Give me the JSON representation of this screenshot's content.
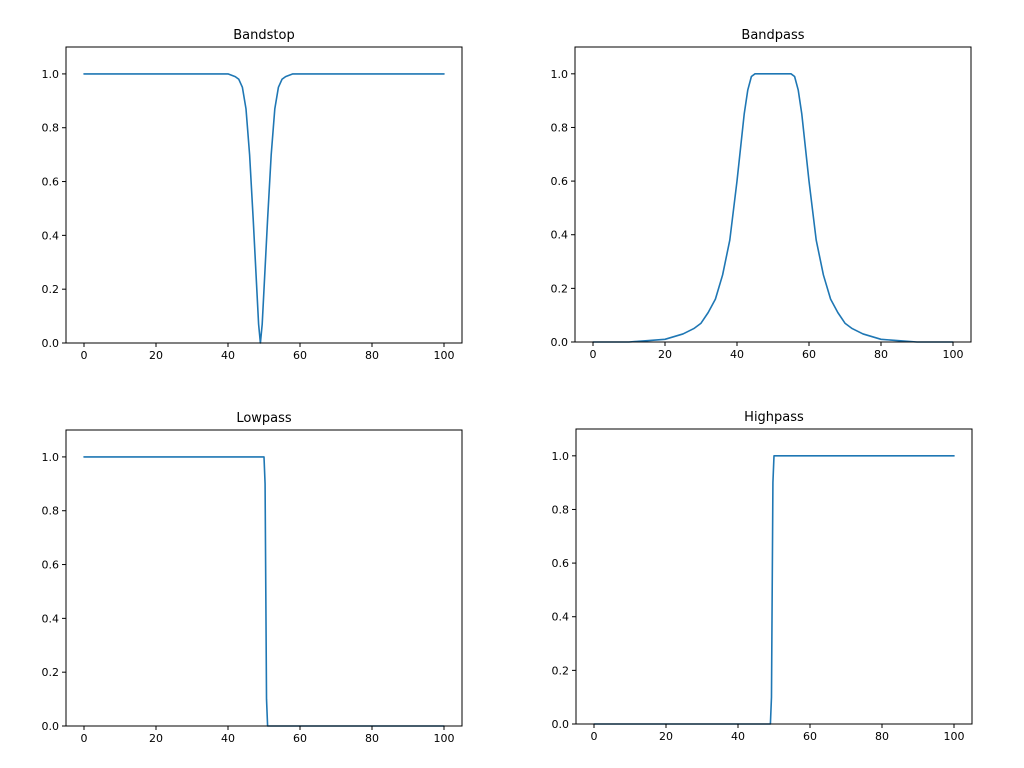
{
  "chart_data": [
    {
      "type": "line",
      "title": "Bandstop",
      "xlim": [
        -5,
        105
      ],
      "ylim": [
        0,
        1.1
      ],
      "xticks": [
        0,
        20,
        40,
        60,
        80,
        100
      ],
      "xtick_labels": [
        "0",
        "20",
        "40",
        "60",
        "80",
        "100"
      ],
      "yticks": [
        0.0,
        0.2,
        0.4,
        0.6,
        0.8,
        1.0
      ],
      "ytick_labels": [
        "0.0",
        "0.2",
        "0.4",
        "0.6",
        "0.8",
        "1.0"
      ],
      "grid": false,
      "series": [
        {
          "color": "#1f77b4",
          "x": [
            0,
            10,
            20,
            30,
            36,
            40,
            42,
            43,
            44,
            45,
            46,
            47,
            48,
            48.5,
            49,
            49.5,
            50,
            51,
            52,
            53,
            54,
            55,
            56,
            58,
            62,
            70,
            80,
            90,
            100
          ],
          "y": [
            1.0,
            1.0,
            1.0,
            1.0,
            1.0,
            1.0,
            0.99,
            0.98,
            0.95,
            0.87,
            0.7,
            0.46,
            0.2,
            0.07,
            0.0,
            0.07,
            0.2,
            0.46,
            0.7,
            0.87,
            0.95,
            0.98,
            0.99,
            1.0,
            1.0,
            1.0,
            1.0,
            1.0,
            1.0
          ]
        }
      ]
    },
    {
      "type": "line",
      "title": "Bandpass",
      "xlim": [
        -5,
        105
      ],
      "ylim": [
        0,
        1.1
      ],
      "xticks": [
        0,
        20,
        40,
        60,
        80,
        100
      ],
      "xtick_labels": [
        "0",
        "20",
        "40",
        "60",
        "80",
        "100"
      ],
      "yticks": [
        0.0,
        0.2,
        0.4,
        0.6,
        0.8,
        1.0
      ],
      "ytick_labels": [
        "0.0",
        "0.2",
        "0.4",
        "0.6",
        "0.8",
        "1.0"
      ],
      "grid": false,
      "series": [
        {
          "color": "#1f77b4",
          "x": [
            0,
            10,
            15,
            20,
            25,
            28,
            30,
            32,
            34,
            36,
            38,
            40,
            42,
            43,
            44,
            45,
            47,
            50,
            53,
            55,
            56,
            57,
            58,
            60,
            62,
            64,
            66,
            68,
            70,
            72,
            75,
            80,
            85,
            90,
            100
          ],
          "y": [
            0.0,
            0.0,
            0.005,
            0.01,
            0.03,
            0.05,
            0.07,
            0.11,
            0.16,
            0.25,
            0.38,
            0.6,
            0.85,
            0.94,
            0.99,
            1.0,
            1.0,
            1.0,
            1.0,
            1.0,
            0.99,
            0.94,
            0.85,
            0.6,
            0.38,
            0.25,
            0.16,
            0.11,
            0.07,
            0.05,
            0.03,
            0.01,
            0.005,
            0.0,
            0.0
          ]
        }
      ]
    },
    {
      "type": "line",
      "title": "Lowpass",
      "xlim": [
        -5,
        105
      ],
      "ylim": [
        0,
        1.1
      ],
      "xticks": [
        0,
        20,
        40,
        60,
        80,
        100
      ],
      "xtick_labels": [
        "0",
        "20",
        "40",
        "60",
        "80",
        "100"
      ],
      "yticks": [
        0.0,
        0.2,
        0.4,
        0.6,
        0.8,
        1.0
      ],
      "ytick_labels": [
        "0.0",
        "0.2",
        "0.4",
        "0.6",
        "0.8",
        "1.0"
      ],
      "grid": false,
      "series": [
        {
          "color": "#1f77b4",
          "x": [
            0,
            10,
            20,
            30,
            40,
            48,
            50,
            50.3,
            50.5,
            50.7,
            51,
            52,
            60,
            70,
            80,
            90,
            100
          ],
          "y": [
            1.0,
            1.0,
            1.0,
            1.0,
            1.0,
            1.0,
            1.0,
            0.9,
            0.5,
            0.1,
            0.0,
            0.0,
            0.0,
            0.0,
            0.0,
            0.0,
            0.0
          ]
        }
      ]
    },
    {
      "type": "line",
      "title": "Highpass",
      "xlim": [
        -5,
        105
      ],
      "ylim": [
        0,
        1.1
      ],
      "xticks": [
        0,
        20,
        40,
        60,
        80,
        100
      ],
      "xtick_labels": [
        "0",
        "20",
        "40",
        "60",
        "80",
        "100"
      ],
      "yticks": [
        0.0,
        0.2,
        0.4,
        0.6,
        0.8,
        1.0
      ],
      "ytick_labels": [
        "0.0",
        "0.2",
        "0.4",
        "0.6",
        "0.8",
        "1.0"
      ],
      "grid": false,
      "series": [
        {
          "color": "#1f77b4",
          "x": [
            0,
            10,
            20,
            30,
            40,
            48,
            49,
            49.3,
            49.5,
            49.7,
            50,
            52,
            60,
            70,
            80,
            90,
            100
          ],
          "y": [
            0.0,
            0.0,
            0.0,
            0.0,
            0.0,
            0.0,
            0.0,
            0.1,
            0.5,
            0.9,
            1.0,
            1.0,
            1.0,
            1.0,
            1.0,
            1.0,
            1.0
          ]
        }
      ]
    }
  ]
}
